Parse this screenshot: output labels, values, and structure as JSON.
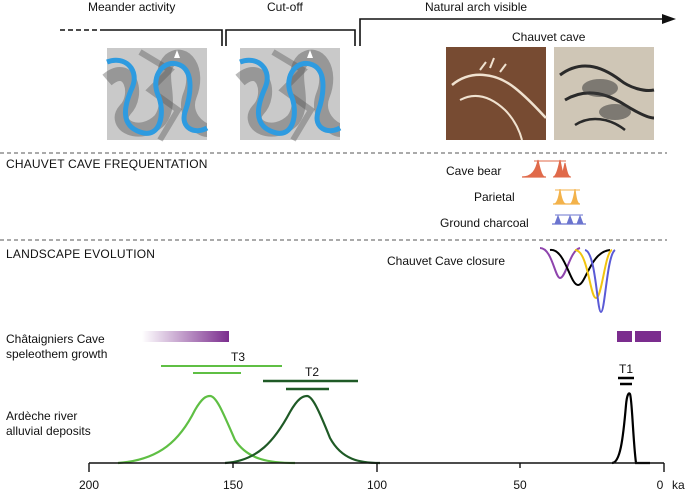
{
  "top": {
    "phases": [
      "Meander activity",
      "Cut-off",
      "Natural arch visible"
    ],
    "photo_caption": "Chauvet cave"
  },
  "sections": {
    "frequentation": "CHAUVET CAVE FREQUENTATION",
    "landscape": "LANDSCAPE EVOLUTION"
  },
  "frequentation_items": [
    "Cave bear",
    "Parietal",
    "Ground charcoal"
  ],
  "closure_label": "Chauvet Cave closure",
  "chataigniers": {
    "line1": "Châtaigniers Cave",
    "line2": "speleothem growth"
  },
  "ardeche": {
    "line1": "Ardèche river",
    "line2": "alluvial deposits"
  },
  "terraces": [
    "T3",
    "T2",
    "T1"
  ],
  "axis": {
    "ticks": [
      "200",
      "150",
      "100",
      "50",
      "0"
    ],
    "unit": "ka"
  },
  "colors": {
    "river": "#2e9be0",
    "bear": "#e06a4a",
    "parietal": "#f3b24a",
    "charcoal": "#6b74cf",
    "speleothem": "#7b2d8e",
    "t3": "#5fbf44",
    "t2": "#1f5a26",
    "t1": "#000000",
    "closure": [
      "#8e44ad",
      "#000000",
      "#f1c40f",
      "#5a5ad6"
    ]
  },
  "chart_data": {
    "type": "diagram",
    "x_axis": {
      "reversed": true,
      "range": [
        200,
        0
      ],
      "unit": "ka",
      "ticks": [
        200,
        150,
        100,
        50,
        0
      ]
    },
    "speleothem_growth": [
      {
        "start": 190,
        "end": 152,
        "fading": true
      },
      {
        "start": 15,
        "end": 11
      },
      {
        "start": 11,
        "end": 0
      }
    ],
    "terraces": [
      {
        "name": "T3",
        "ranges": [
          [
            172,
            133
          ],
          [
            164,
            147
          ]
        ]
      },
      {
        "name": "T2",
        "ranges": [
          [
            132,
            110
          ],
          [
            127,
            118
          ]
        ]
      },
      {
        "name": "T1",
        "ranges": [
          [
            14,
            9
          ]
        ]
      }
    ],
    "alluvial_peaks_ka": [
      157,
      125,
      12
    ],
    "frequentation": {
      "Cave bear": [
        37,
        33
      ],
      "Parietal": [
        36,
        31
      ],
      "Ground charcoal": [
        36,
        33,
        29
      ]
    },
    "cave_closure_ka": [
      26,
      23,
      21,
      19
    ]
  }
}
